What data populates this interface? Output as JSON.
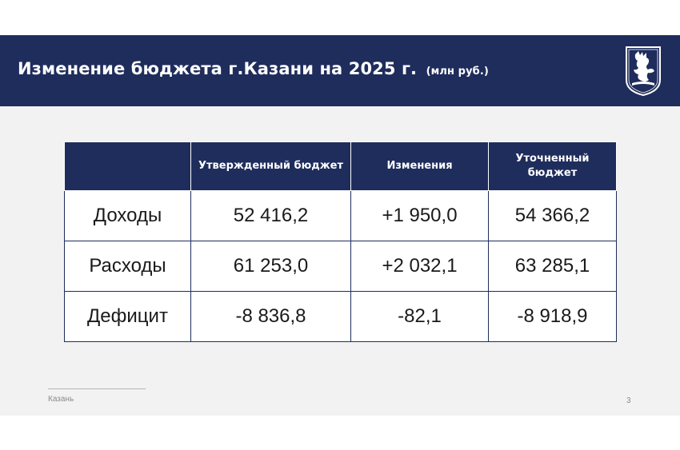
{
  "header": {
    "title": "Изменение бюджета г.Казани на 2025 г.",
    "unit": "(млн руб.)",
    "emblem_icon": "kazan-zilant-emblem-icon"
  },
  "table": {
    "columns": [
      "",
      "Утвержденный бюджет",
      "Изменения",
      "Уточненный бюджет"
    ],
    "rows": [
      {
        "label": "Доходы",
        "approved": "52 416,2",
        "change": "+1 950,0",
        "revised": "54 366,2"
      },
      {
        "label": "Расходы",
        "approved": "61 253,0",
        "change": "+2 032,1",
        "revised": "63 285,1"
      },
      {
        "label": "Дефицит",
        "approved": "-8 836,8",
        "change": "-82,1",
        "revised": "-8 918,9"
      }
    ]
  },
  "footer": {
    "city": "Казань",
    "page": "3"
  },
  "colors": {
    "header_bg": "#1f2d5c",
    "slide_bg": "#f2f2f2"
  }
}
